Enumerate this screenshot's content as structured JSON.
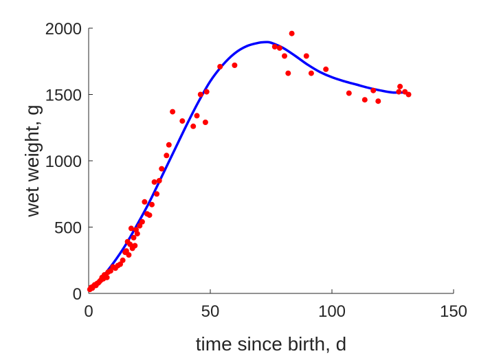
{
  "chart_data": {
    "type": "scatter",
    "xlabel": "time since birth, d",
    "ylabel": "wet weight, g",
    "xlim": [
      0,
      150
    ],
    "ylim": [
      0,
      2000
    ],
    "xticks": [
      0,
      50,
      100,
      150
    ],
    "yticks": [
      0,
      500,
      1000,
      1500,
      2000
    ],
    "xtick_labels": [
      "0",
      "50",
      "100",
      "150"
    ],
    "ytick_labels": [
      "0",
      "500",
      "1000",
      "1500",
      "2000"
    ],
    "grid": false,
    "colors": {
      "points": "#ff0000",
      "fit": "#0000ff",
      "axes": "#262626"
    },
    "series": [
      {
        "kind": "points",
        "x": [
          0.5,
          1,
          1.5,
          2,
          2.5,
          3,
          3.5,
          4,
          4.5,
          5,
          5.5,
          6,
          6.5,
          7,
          7.5,
          8,
          9,
          10,
          11,
          12,
          13,
          14,
          15,
          15.5,
          16,
          16.5,
          17,
          17.5,
          18,
          18.5,
          19,
          19.5,
          20,
          21,
          22,
          23,
          24,
          25,
          26,
          27,
          28,
          29,
          30,
          32,
          33,
          34.5,
          38.5,
          43,
          44.5,
          46,
          48,
          48.5,
          54,
          60,
          76.5,
          78.5,
          80.5,
          82,
          83.5,
          89.5,
          91.5,
          97.5,
          107,
          113.5,
          117,
          119,
          127.5,
          128,
          130,
          131.5
        ],
        "y": [
          30,
          45,
          40,
          55,
          65,
          60,
          75,
          80,
          90,
          100,
          120,
          110,
          140,
          130,
          120,
          160,
          170,
          200,
          190,
          210,
          220,
          250,
          310,
          320,
          390,
          290,
          370,
          490,
          340,
          420,
          360,
          480,
          450,
          510,
          540,
          690,
          600,
          590,
          670,
          840,
          750,
          850,
          940,
          1040,
          1120,
          1370,
          1300,
          1260,
          1340,
          1500,
          1290,
          1520,
          1710,
          1720,
          1860,
          1850,
          1790,
          1660,
          1960,
          1790,
          1660,
          1690,
          1510,
          1460,
          1530,
          1450,
          1520,
          1560,
          1520,
          1500
        ]
      },
      {
        "kind": "fit",
        "x": [
          0,
          5,
          10,
          15,
          20,
          25,
          30,
          35,
          40,
          45,
          50,
          55,
          60,
          65,
          70,
          73,
          75,
          80,
          85,
          90,
          95,
          100,
          105,
          110,
          115,
          120,
          125,
          130
        ],
        "y": [
          30,
          110,
          225,
          360,
          520,
          690,
          880,
          1070,
          1260,
          1440,
          1600,
          1720,
          1810,
          1865,
          1890,
          1895,
          1890,
          1850,
          1790,
          1725,
          1670,
          1630,
          1600,
          1575,
          1550,
          1530,
          1515,
          1515
        ]
      }
    ]
  }
}
